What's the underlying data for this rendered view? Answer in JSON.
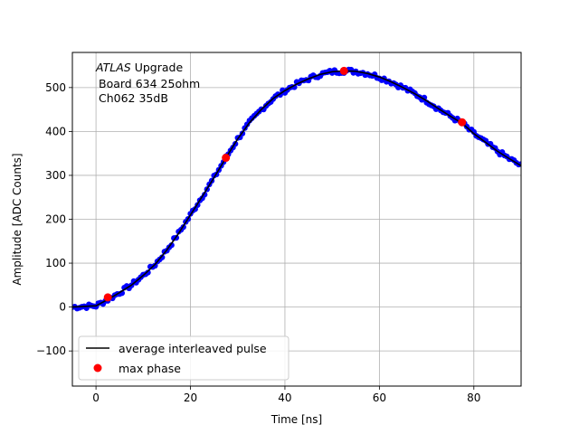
{
  "chart_data": {
    "type": "scatter",
    "title": "",
    "xlabel": "Time [ns]",
    "ylabel": "Amplitude [ADC Counts]",
    "xlim": [
      -5,
      90
    ],
    "ylim": [
      -180,
      580
    ],
    "xticks": [
      0,
      20,
      40,
      60,
      80
    ],
    "yticks": [
      -100,
      0,
      100,
      200,
      300,
      400,
      500
    ],
    "grid": true,
    "legend_position": "lower-left",
    "annotation": {
      "line1_italic": "ATLAS",
      "line1_rest": " Upgrade",
      "line2": "Board 634 25ohm",
      "line3": "Ch062 35dB"
    },
    "series": [
      {
        "name": "average interleaved pulse",
        "type": "line",
        "color": "#000000",
        "points": [
          [
            -5,
            0
          ],
          [
            0,
            3
          ],
          [
            2.5,
            17
          ],
          [
            5,
            33
          ],
          [
            7.5,
            50
          ],
          [
            10,
            72
          ],
          [
            12.5,
            97
          ],
          [
            15,
            130
          ],
          [
            17.5,
            168
          ],
          [
            20,
            210
          ],
          [
            22.5,
            252
          ],
          [
            25,
            295
          ],
          [
            27.5,
            340
          ],
          [
            30,
            383
          ],
          [
            32.5,
            420
          ],
          [
            35,
            450
          ],
          [
            37.5,
            475
          ],
          [
            40,
            493
          ],
          [
            42.5,
            508
          ],
          [
            45,
            520
          ],
          [
            47.5,
            530
          ],
          [
            50,
            536
          ],
          [
            52.5,
            538
          ],
          [
            55,
            537
          ],
          [
            57.5,
            532
          ],
          [
            60,
            524
          ],
          [
            62.5,
            513
          ],
          [
            65,
            500
          ],
          [
            67.5,
            486
          ],
          [
            70,
            470
          ],
          [
            72.5,
            452
          ],
          [
            75,
            435
          ],
          [
            77.5,
            419
          ],
          [
            80,
            395
          ],
          [
            82.5,
            375
          ],
          [
            85,
            355
          ],
          [
            87.5,
            338
          ],
          [
            90,
            322
          ]
        ]
      },
      {
        "name": "samples",
        "type": "scatter",
        "color": "#0000ff",
        "note_sampling_step_ns": 0.5
      },
      {
        "name": "max phase",
        "type": "scatter",
        "color": "#ff0000",
        "points": [
          [
            2.5,
            22
          ],
          [
            27.5,
            340
          ],
          [
            52.5,
            538
          ],
          [
            77.5,
            421
          ]
        ]
      }
    ]
  }
}
